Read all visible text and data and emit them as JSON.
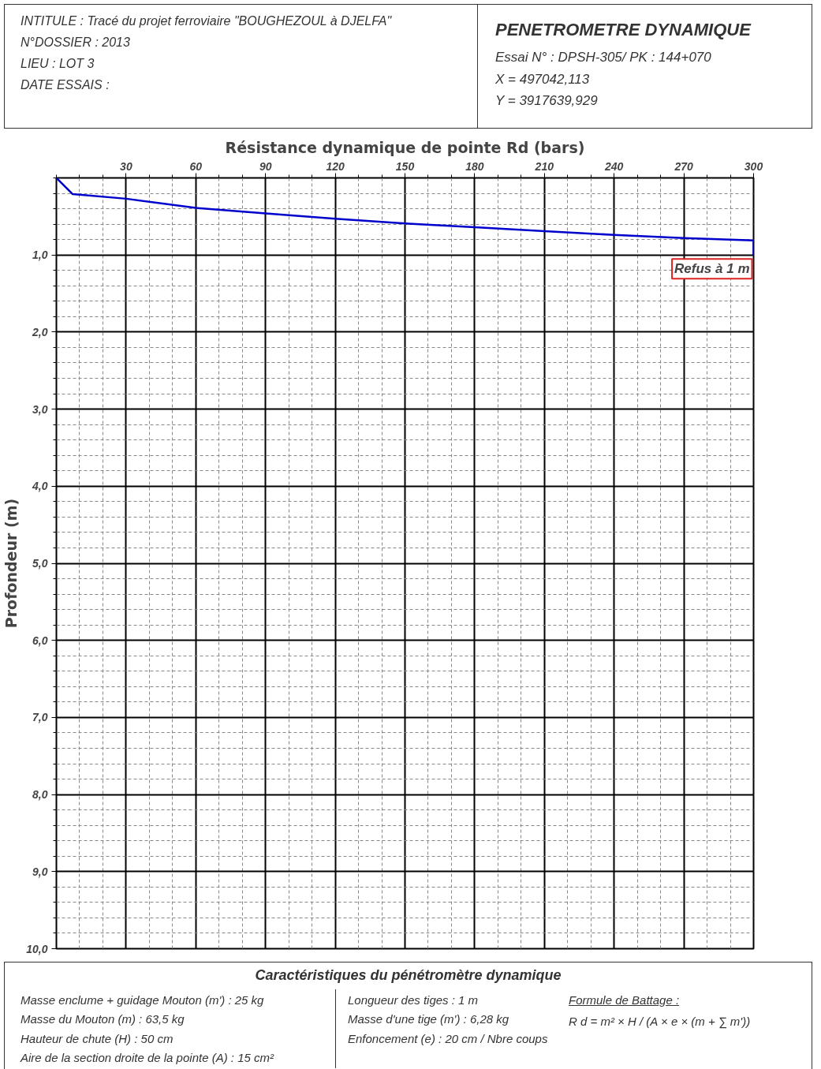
{
  "chart_data": {
    "type": "line",
    "title": "PENETROMETRE DYNAMIQUE",
    "xlabel": "Résistance dynamique de pointe Rd (bars)",
    "ylabel": "Profondeur (m)",
    "x": [
      0,
      7,
      30,
      60,
      90,
      120,
      150,
      180,
      210,
      240,
      270,
      300,
      300
    ],
    "series": [
      {
        "color": "#0000cc",
        "values": [
          0,
          0.21,
          0.27,
          0.39,
          0.46,
          0.53,
          0.59,
          0.64,
          0.69,
          0.74,
          0.78,
          0.81,
          1.0
        ]
      }
    ],
    "xlim": [
      0,
      300
    ],
    "xticks": [
      30,
      60,
      90,
      120,
      150,
      180,
      210,
      240,
      270,
      300
    ],
    "ylim": [
      10,
      0
    ],
    "yticks": [
      {
        "value": 1,
        "label": "1,0"
      },
      {
        "value": 2,
        "label": "2,0"
      },
      {
        "value": 3,
        "label": "3,0"
      },
      {
        "value": 4,
        "label": "4,0"
      },
      {
        "value": 5,
        "label": "5,0"
      },
      {
        "value": 6,
        "label": "6,0"
      },
      {
        "value": 7,
        "label": "7,0"
      },
      {
        "value": 8,
        "label": "8,0"
      },
      {
        "value": 9,
        "label": "9,0"
      },
      {
        "value": 10,
        "label": "10,0"
      }
    ],
    "grid": true,
    "marker": "none",
    "line_style": "solid",
    "annotations": [
      "INTITULE : Tracé du projet ferroviaire \"BOUGHEZOUL à DJELFA\"",
      "N°DOSSIER : 2013",
      "LIEU : LOT 3",
      "DATE ESSAIS :",
      "Essai N° : DPSH-305/  PK : 144+070",
      "X = 497042,113",
      "Y = 3917639,929",
      {
        "text": "Refus à 1 m",
        "x": 300,
        "y": 1.0
      },
      "Caractéristiques du pénétromètre dynamique",
      "Masse enclume + guidage Mouton (m') : 25 kg",
      "Masse du Mouton (m) : 63,5 kg",
      "Hauteur de chute (H) : 50 cm",
      "Aire de la section droite de la pointe (A) : 15 cm²",
      "Longueur des tiges :  1 m",
      "Masse d'une tige (m') :  6,28 kg",
      "Enfoncement (e) : 20 cm / Nbre coups",
      "Formule de Battage :",
      "R d = m² × H / (A × e × (m + ∑ m'))"
    ]
  }
}
